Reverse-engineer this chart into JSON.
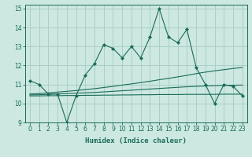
{
  "title": "",
  "xlabel": "Humidex (Indice chaleur)",
  "xlim": [
    -0.5,
    23.5
  ],
  "ylim": [
    9,
    15.2
  ],
  "yticks": [
    9,
    10,
    11,
    12,
    13,
    14,
    15
  ],
  "xticks": [
    0,
    1,
    2,
    3,
    4,
    5,
    6,
    7,
    8,
    9,
    10,
    11,
    12,
    13,
    14,
    15,
    16,
    17,
    18,
    19,
    20,
    21,
    22,
    23
  ],
  "bg_color": "#cce8e0",
  "grid_color": "#aacfc8",
  "line_color": "#1a6b5a",
  "main_y": [
    11.2,
    11.0,
    10.5,
    10.5,
    9.0,
    10.4,
    11.5,
    12.1,
    13.1,
    12.9,
    12.4,
    13.0,
    12.4,
    13.5,
    15.0,
    13.5,
    13.2,
    13.9,
    11.9,
    11.0,
    10.0,
    11.0,
    10.9,
    10.4
  ],
  "line2_y": [
    10.5,
    10.52,
    10.56,
    10.6,
    10.64,
    10.68,
    10.73,
    10.78,
    10.84,
    10.9,
    10.97,
    11.03,
    11.1,
    11.17,
    11.25,
    11.32,
    11.4,
    11.48,
    11.57,
    11.65,
    11.72,
    11.78,
    11.84,
    11.9
  ],
  "line3_y": [
    10.45,
    10.46,
    10.48,
    10.5,
    10.52,
    10.54,
    10.56,
    10.58,
    10.61,
    10.64,
    10.67,
    10.7,
    10.73,
    10.76,
    10.79,
    10.82,
    10.85,
    10.88,
    10.9,
    10.92,
    10.94,
    10.95,
    10.96,
    10.97
  ],
  "line4_y": [
    10.4,
    10.4,
    10.41,
    10.41,
    10.42,
    10.42,
    10.43,
    10.43,
    10.44,
    10.44,
    10.45,
    10.45,
    10.46,
    10.46,
    10.47,
    10.47,
    10.47,
    10.48,
    10.48,
    10.48,
    10.48,
    10.49,
    10.49,
    10.49
  ]
}
